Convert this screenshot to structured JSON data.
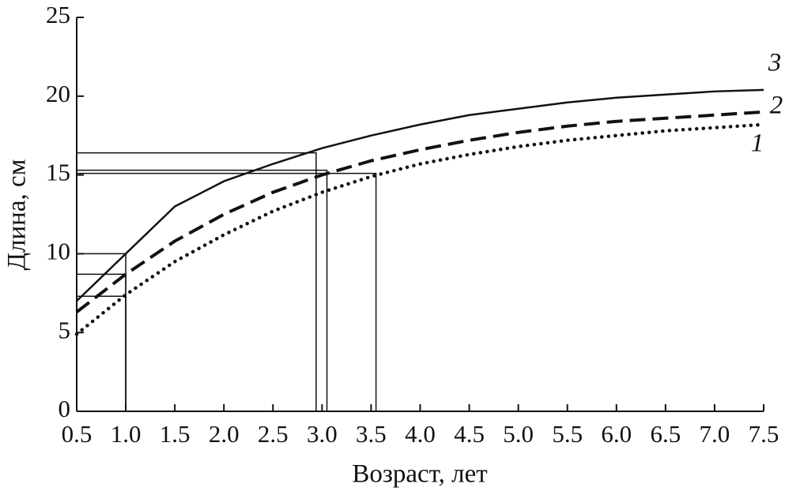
{
  "chart_data": {
    "type": "line",
    "x_label": "Возраст, лет",
    "y_label": "Длина, см",
    "x": [
      0.5,
      1.0,
      1.5,
      2.0,
      2.5,
      3.0,
      3.5,
      4.0,
      4.5,
      5.0,
      5.5,
      6.0,
      6.5,
      7.0,
      7.5
    ],
    "series": [
      {
        "name": "1",
        "color": "#111111",
        "dash": "dotted",
        "values": [
          4.9,
          7.4,
          9.5,
          11.2,
          12.7,
          13.9,
          14.9,
          15.7,
          16.3,
          16.8,
          17.2,
          17.5,
          17.8,
          18.0,
          18.2
        ]
      },
      {
        "name": "2",
        "color": "#111111",
        "dash": "dashed",
        "values": [
          6.3,
          8.7,
          10.8,
          12.5,
          13.9,
          15.0,
          15.9,
          16.6,
          17.2,
          17.7,
          18.1,
          18.4,
          18.6,
          18.8,
          19.0
        ]
      },
      {
        "name": "3",
        "color": "#111111",
        "dash": "solid",
        "values": [
          7.0,
          10.0,
          13.0,
          14.6,
          15.7,
          16.7,
          17.5,
          18.2,
          18.8,
          19.2,
          19.6,
          19.9,
          20.1,
          20.3,
          20.4
        ]
      }
    ],
    "reference_lines": [
      {
        "x": 1.0,
        "y": 7.3
      },
      {
        "x": 1.0,
        "y": 8.7
      },
      {
        "x": 1.0,
        "y": 10.0
      },
      {
        "x": 2.94,
        "y": 16.4
      },
      {
        "x": 3.05,
        "y": 15.3
      },
      {
        "x": 3.55,
        "y": 15.1
      }
    ],
    "xlim": [
      0.5,
      7.5
    ],
    "ylim": [
      0,
      25
    ],
    "xticks": [
      0.5,
      {
        "value": 1,
        "label": "1.0"
      },
      1.5,
      {
        "value": 2,
        "label": "2.0"
      },
      2.5,
      {
        "value": 3,
        "label": "3.0"
      },
      3.5,
      {
        "value": 4,
        "label": "4.0"
      },
      4.5,
      {
        "value": 5,
        "label": "5.0"
      },
      5.5,
      {
        "value": 6,
        "label": "6.0"
      },
      6.5,
      {
        "value": 7,
        "label": "7.0"
      },
      7.5
    ],
    "yticks": [
      0,
      5,
      10,
      15,
      20,
      25
    ],
    "grid": false
  }
}
